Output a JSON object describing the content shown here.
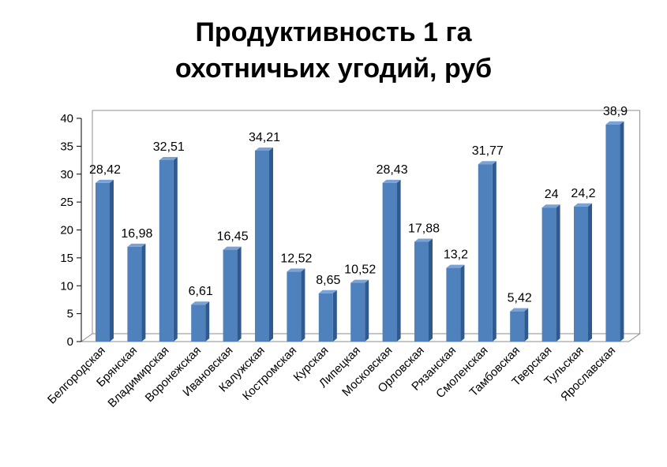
{
  "chart_data": {
    "type": "bar",
    "title_lines": [
      "Продуктивность 1 га",
      "охотничьих угодий, руб"
    ],
    "categories": [
      "Белгородская",
      "Брянская",
      "Владимирская",
      "Воронежская",
      "Ивановская",
      "Калужская",
      "Костромская",
      "Курская",
      "Липецкая",
      "Московская",
      "Орловская",
      "Рязанская",
      "Смоленская",
      "Тамбовская",
      "Тверская",
      "Тульская",
      "Ярославская"
    ],
    "values": [
      28.42,
      16.98,
      32.51,
      6.61,
      16.45,
      34.21,
      12.52,
      8.65,
      10.52,
      28.43,
      17.88,
      13.2,
      31.77,
      5.42,
      24,
      24.2,
      38.9
    ],
    "value_labels": [
      "28,42",
      "16,98",
      "32,51",
      "6,61",
      "16,45",
      "34,21",
      "12,52",
      "8,65",
      "10,52",
      "28,43",
      "17,88",
      "13,2",
      "31,77",
      "5,42",
      "24",
      "24,2",
      "38,9"
    ],
    "ylim": [
      0,
      40
    ],
    "yticks": [
      "0",
      "5",
      "10",
      "15",
      "20",
      "25",
      "30",
      "35",
      "40"
    ],
    "bar_color": "#4F81BD",
    "grid": false,
    "legend": "none",
    "style": "3d-column"
  }
}
